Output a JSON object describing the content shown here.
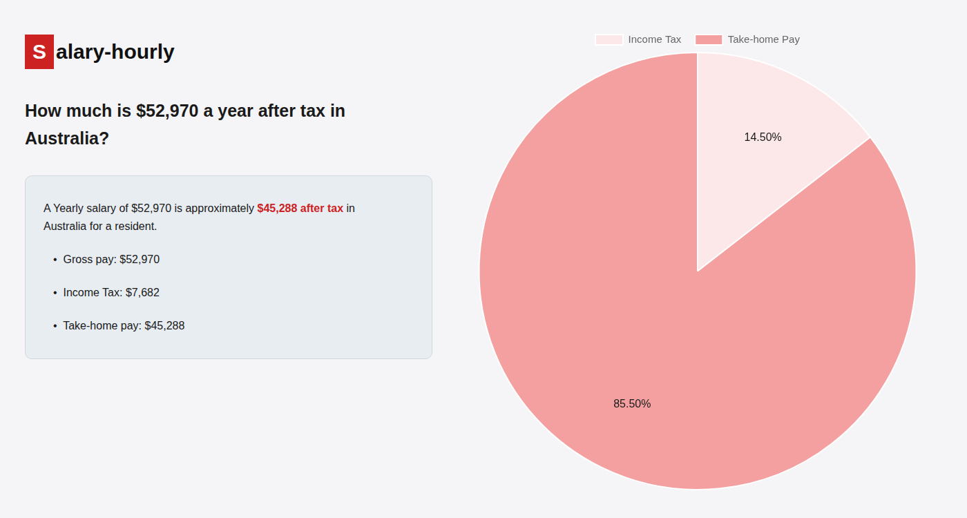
{
  "chart_data": {
    "type": "pie",
    "title": [
      "How much is $52,970 a year after tax in",
      "Australia?"
    ],
    "annotations": [
      [
        "S",
        "alary-hourly"
      ],
      [
        "A Yearly salary of $52,970 is approximately ",
        "$45,288 after tax",
        " in"
      ],
      [
        "Australia for a resident."
      ],
      [
        "•  Gross pay: $52,970"
      ],
      [
        "•  Income Tax: $7,682"
      ],
      [
        "•  Take-home pay: $45,288"
      ]
    ],
    "categories": [
      "Income Tax",
      "Take-home Pay"
    ],
    "values": [
      14.5,
      85.5
    ],
    "value_labels": [
      "14.50%",
      "85.50%"
    ],
    "colors": [
      "#fce8e8",
      "#f4a0a0"
    ],
    "data_labels": true,
    "legend": "top"
  }
}
